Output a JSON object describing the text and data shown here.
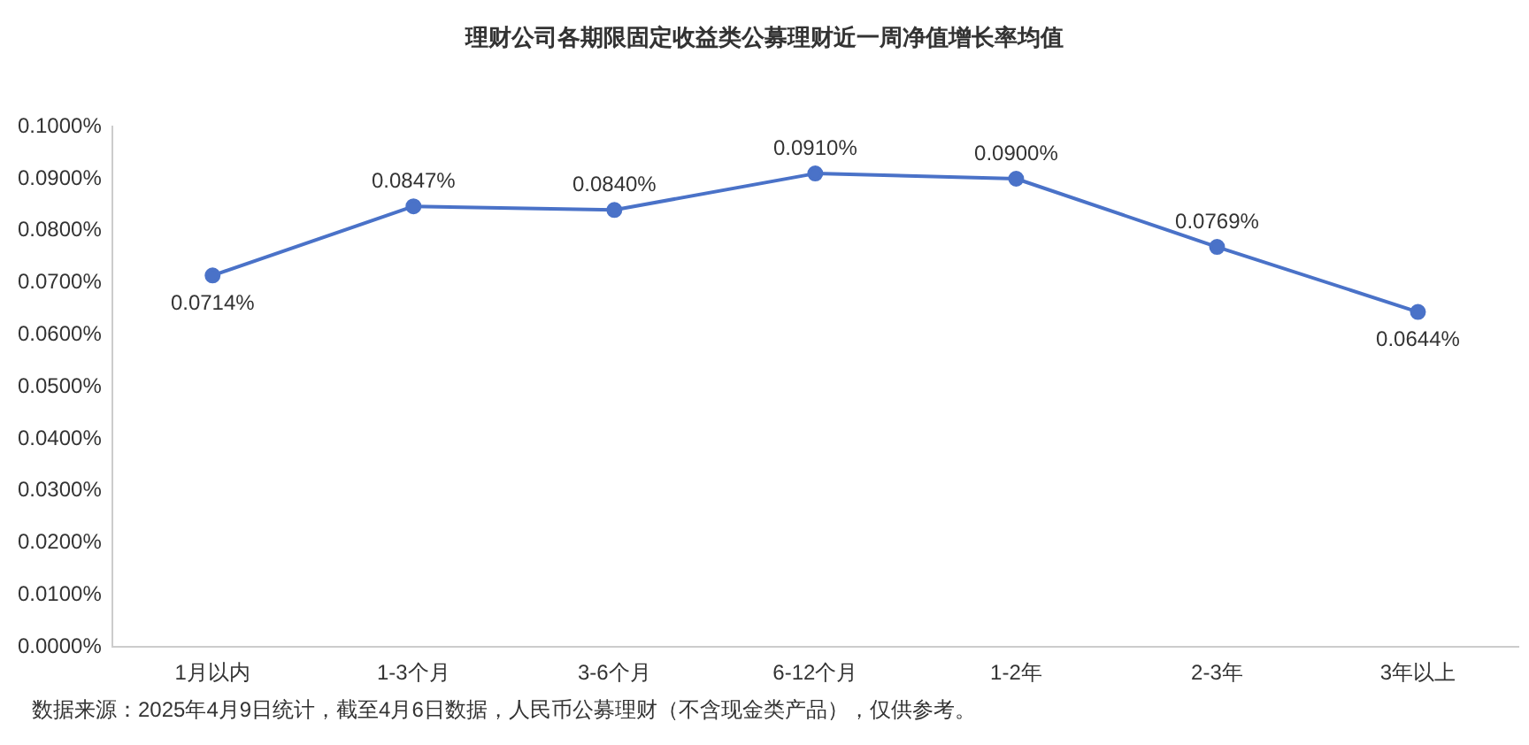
{
  "chart_data": {
    "type": "line",
    "title": "理财公司各期限固定收益类公募理财近一周净值增长率均值",
    "categories": [
      "1月以内",
      "1-3个月",
      "3-6个月",
      "6-12个月",
      "1-2年",
      "2-3年",
      "3年以上"
    ],
    "series": [
      {
        "color": "#4a72c8",
        "values": [
          0.0714,
          0.0847,
          0.084,
          0.091,
          0.09,
          0.0769,
          0.0644
        ]
      }
    ],
    "value_labels": [
      "0.0714%",
      "0.0847%",
      "0.0840%",
      "0.0910%",
      "0.0900%",
      "0.0769%",
      "0.0644%"
    ],
    "ylim": [
      0,
      0.1
    ],
    "yticks": [
      {
        "value": 0,
        "label": "0.0000%"
      },
      {
        "value": 0.01,
        "label": "0.0100%"
      },
      {
        "value": 0.02,
        "label": "0.0200%"
      },
      {
        "value": 0.03,
        "label": "0.0300%"
      },
      {
        "value": 0.04,
        "label": "0.0400%"
      },
      {
        "value": 0.05,
        "label": "0.0500%"
      },
      {
        "value": 0.06,
        "label": "0.0600%"
      },
      {
        "value": 0.07,
        "label": "0.0700%"
      },
      {
        "value": 0.08,
        "label": "0.0800%"
      },
      {
        "value": 0.09,
        "label": "0.0900%"
      },
      {
        "value": 0.1,
        "label": "0.1000%"
      }
    ],
    "grid": false,
    "legend": false,
    "marker": "circle",
    "line_style": "solid",
    "annotations": [
      "数据来源：2025年4月9日统计，截至4月6日数据，人民币公募理财（不含现金类产品），仅供参考。"
    ]
  }
}
